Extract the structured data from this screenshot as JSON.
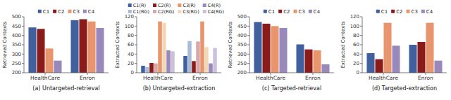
{
  "chart_data": [
    {
      "type": "bar",
      "title": "(a) Untargeted-retrieval",
      "y_label": "Retrieved Contexts",
      "categories": [
        "HealthCare",
        "Enron"
      ],
      "series": [
        {
          "name": "C1",
          "color": "#4060a0",
          "values": [
            443,
            482
          ]
        },
        {
          "name": "C2",
          "color": "#8b1a1a",
          "values": [
            435,
            487
          ]
        },
        {
          "name": "C3",
          "color": "#e8956d",
          "values": [
            330,
            475
          ]
        },
        {
          "name": "C4",
          "color": "#9988bb",
          "values": [
            265,
            440
          ]
        }
      ],
      "ylim": [
        200,
        500
      ],
      "yticks": [
        200,
        250,
        300,
        350,
        400,
        450,
        500
      ],
      "legend": "top"
    },
    {
      "type": "bar",
      "title": "(b) Untargeted-extraction",
      "y_label": "Extracted Contexts",
      "categories": [
        "HealthCare",
        "Enron"
      ],
      "series": [
        {
          "name": "C1(R)",
          "color": "#4060a0",
          "values": [
            15,
            36
          ]
        },
        {
          "name": "C1(RG)",
          "color": "#aabbd8",
          "values": [
            12,
            68
          ]
        },
        {
          "name": "C2(R)",
          "color": "#8b1a1a",
          "values": [
            21,
            25
          ]
        },
        {
          "name": "C2(RG)",
          "color": "#d8a8a8",
          "values": [
            20,
            67
          ]
        },
        {
          "name": "C3(R)",
          "color": "#e8956d",
          "values": [
            110,
            110
          ]
        },
        {
          "name": "C3(RG)",
          "color": "#f0d8b8",
          "values": [
            107,
            55
          ]
        },
        {
          "name": "C4(R)",
          "color": "#9988bb",
          "values": [
            48,
            20
          ]
        },
        {
          "name": "C4(RG)",
          "color": "#ccc0dc",
          "values": [
            46,
            53
          ]
        }
      ],
      "ylim": [
        0,
        120
      ],
      "yticks": [
        0,
        20,
        40,
        60,
        80,
        100,
        120
      ],
      "legend": "top"
    },
    {
      "type": "bar",
      "title": "(c) Targeted-retrieval",
      "y_label": "Retrieved Contexts",
      "categories": [
        "HealthCare",
        "Enron"
      ],
      "series": [
        {
          "name": "C1",
          "color": "#4060a0",
          "values": [
            472,
            352
          ]
        },
        {
          "name": "C2",
          "color": "#8b1a1a",
          "values": [
            463,
            325
          ]
        },
        {
          "name": "C3",
          "color": "#e8956d",
          "values": [
            450,
            320
          ]
        },
        {
          "name": "C4",
          "color": "#9988bb",
          "values": [
            440,
            245
          ]
        }
      ],
      "ylim": [
        200,
        500
      ],
      "yticks": [
        200,
        250,
        300,
        350,
        400,
        450,
        500
      ],
      "legend": "top"
    },
    {
      "type": "bar",
      "title": "(d) Targeted-extraction",
      "y_label": "Extracted Contexts",
      "categories": [
        "HealthCare",
        "Enron"
      ],
      "series": [
        {
          "name": "C1",
          "color": "#4060a0",
          "values": [
            42,
            60
          ]
        },
        {
          "name": "C2",
          "color": "#8b1a1a",
          "values": [
            29,
            66
          ]
        },
        {
          "name": "C3",
          "color": "#e8956d",
          "values": [
            107,
            107
          ]
        },
        {
          "name": "C4",
          "color": "#9988bb",
          "values": [
            58,
            26
          ]
        }
      ],
      "ylim": [
        0,
        120
      ],
      "yticks": [
        0,
        20,
        40,
        60,
        80,
        100,
        120
      ],
      "legend": "top"
    }
  ]
}
